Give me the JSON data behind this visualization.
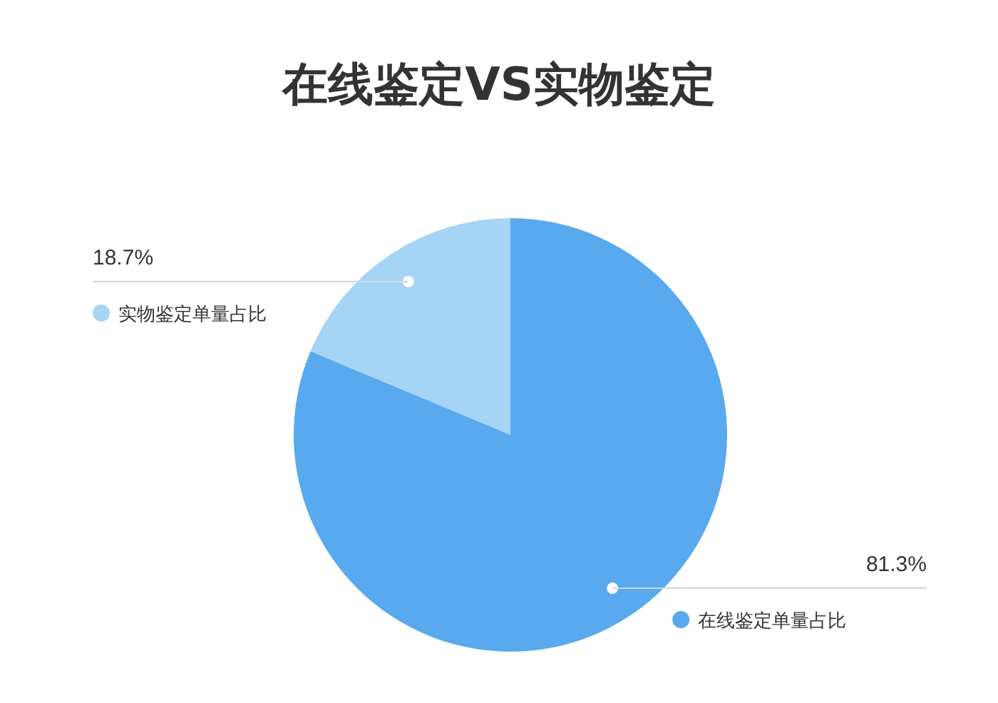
{
  "chart_data": {
    "type": "pie",
    "title": "在线鉴定VS实物鉴定",
    "categories": [
      "实物鉴定单量占比",
      "在线鉴定单量占比"
    ],
    "values": [
      18.7,
      81.3
    ],
    "colors": [
      "#a6d4f5",
      "#58a9ee"
    ],
    "value_labels": [
      "18.7%",
      "81.3%"
    ],
    "legend": "left"
  }
}
